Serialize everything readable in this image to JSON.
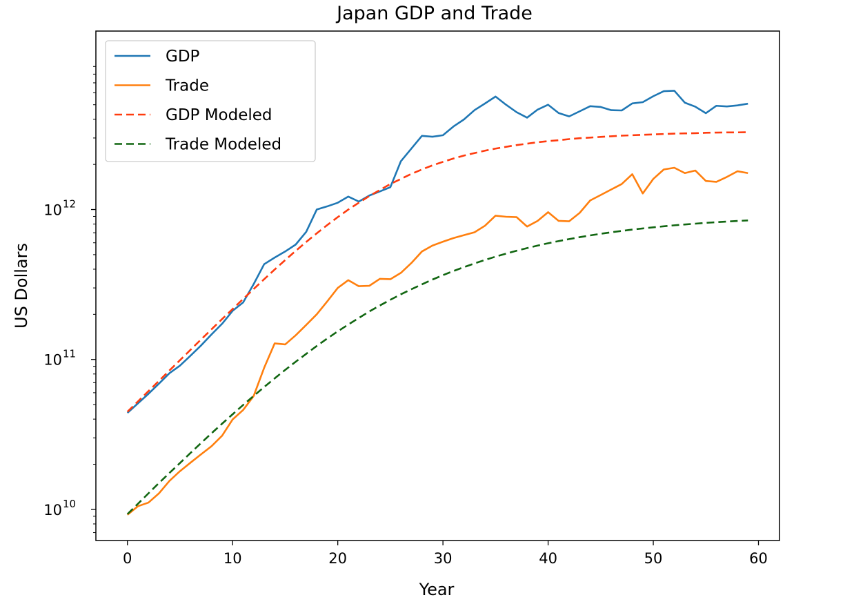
{
  "chart_data": {
    "type": "line",
    "title": "Japan GDP and Trade",
    "xlabel": "Year",
    "ylabel": "US Dollars",
    "yscale": "log",
    "xlim": [
      -3,
      62
    ],
    "ylim": [
      6200000000.0,
      15500000000000.0
    ],
    "xticks": [
      0,
      10,
      20,
      30,
      40,
      50,
      60
    ],
    "yticks": [
      {
        "value": 10000000000.0,
        "base": "10",
        "exp": "10"
      },
      {
        "value": 100000000000.0,
        "base": "10",
        "exp": "11"
      },
      {
        "value": 1000000000000.0,
        "base": "10",
        "exp": "12"
      }
    ],
    "grid": false,
    "legend_position": "upper-left",
    "x": [
      0,
      1,
      2,
      3,
      4,
      5,
      6,
      7,
      8,
      9,
      10,
      11,
      12,
      13,
      14,
      15,
      16,
      17,
      18,
      19,
      20,
      21,
      22,
      23,
      24,
      25,
      26,
      27,
      28,
      29,
      30,
      31,
      32,
      33,
      34,
      35,
      36,
      37,
      38,
      39,
      40,
      41,
      42,
      43,
      44,
      45,
      46,
      47,
      48,
      49,
      50,
      51,
      52,
      53,
      54,
      55,
      56,
      57,
      58,
      59
    ],
    "series": [
      {
        "name": "GDP",
        "color": "#1f77b4",
        "style": "solid",
        "values": [
          44000000000.0,
          51000000000.0,
          59000000000.0,
          69000000000.0,
          81000000000.0,
          91000000000.0,
          106000000000.0,
          124000000000.0,
          147000000000.0,
          173000000000.0,
          211000000000.0,
          240000000000.0,
          318000000000.0,
          432000000000.0,
          478000000000.0,
          525000000000.0,
          584000000000.0,
          710000000000.0,
          1000000000000.0,
          1050000000000.0,
          1110000000000.0,
          1220000000000.0,
          1130000000000.0,
          1240000000000.0,
          1320000000000.0,
          1410000000000.0,
          2100000000000.0,
          2550000000000.0,
          3100000000000.0,
          3060000000000.0,
          3130000000000.0,
          3580000000000.0,
          3990000000000.0,
          4600000000000.0,
          5100000000000.0,
          5670000000000.0,
          5000000000000.0,
          4460000000000.0,
          4100000000000.0,
          4640000000000.0,
          5000000000000.0,
          4400000000000.0,
          4180000000000.0,
          4520000000000.0,
          4890000000000.0,
          4830000000000.0,
          4600000000000.0,
          4580000000000.0,
          5100000000000.0,
          5200000000000.0,
          5700000000000.0,
          6160000000000.0,
          6200000000000.0,
          5160000000000.0,
          4850000000000.0,
          4390000000000.0,
          4920000000000.0,
          4870000000000.0,
          4950000000000.0,
          5080000000000.0
        ]
      },
      {
        "name": "Trade",
        "color": "#ff7f0e",
        "style": "solid",
        "values": [
          9200000000.0,
          10500000000.0,
          11100000000.0,
          12800000000.0,
          15500000000.0,
          18000000000.0,
          20500000000.0,
          23300000000.0,
          26400000000.0,
          31000000000.0,
          39800000000.0,
          46000000000.0,
          57000000000.0,
          88000000000.0,
          128000000000.0,
          126000000000.0,
          145000000000.0,
          170000000000.0,
          200000000000.0,
          244000000000.0,
          300000000000.0,
          338000000000.0,
          308000000000.0,
          310000000000.0,
          345000000000.0,
          343000000000.0,
          378000000000.0,
          440000000000.0,
          525000000000.0,
          575000000000.0,
          610000000000.0,
          645000000000.0,
          675000000000.0,
          705000000000.0,
          780000000000.0,
          910000000000.0,
          895000000000.0,
          890000000000.0,
          770000000000.0,
          840000000000.0,
          960000000000.0,
          840000000000.0,
          835000000000.0,
          950000000000.0,
          1150000000000.0,
          1250000000000.0,
          1360000000000.0,
          1480000000000.0,
          1720000000000.0,
          1280000000000.0,
          1600000000000.0,
          1850000000000.0,
          1900000000000.0,
          1750000000000.0,
          1820000000000.0,
          1550000000000.0,
          1530000000000.0,
          1650000000000.0,
          1800000000000.0,
          1750000000000.0
        ]
      },
      {
        "name": "GDP Modeled",
        "color": "#ff3b0e",
        "style": "dashed",
        "values": [
          44800000000.0,
          52500000000.0,
          61500000000.0,
          72000000000.0,
          84500000000.0,
          99000000000.0,
          116000000000.0,
          136000000000.0,
          159000000000.0,
          186000000000.0,
          217000000000.0,
          253000000000.0,
          295000000000.0,
          343000000000.0,
          398000000000.0,
          460000000000.0,
          530000000000.0,
          608000000000.0,
          694000000000.0,
          788000000000.0,
          890000000000.0,
          1000000000000.0,
          1110000000000.0,
          1230000000000.0,
          1350000000000.0,
          1480000000000.0,
          1600000000000.0,
          1730000000000.0,
          1850000000000.0,
          1970000000000.0,
          2080000000000.0,
          2190000000000.0,
          2290000000000.0,
          2380000000000.0,
          2470000000000.0,
          2550000000000.0,
          2620000000000.0,
          2690000000000.0,
          2750000000000.0,
          2810000000000.0,
          2860000000000.0,
          2900000000000.0,
          2950000000000.0,
          2990000000000.0,
          3020000000000.0,
          3050000000000.0,
          3080000000000.0,
          3110000000000.0,
          3130000000000.0,
          3150000000000.0,
          3170000000000.0,
          3190000000000.0,
          3210000000000.0,
          3220000000000.0,
          3230000000000.0,
          3250000000000.0,
          3260000000000.0,
          3270000000000.0,
          3270000000000.0,
          3280000000000.0
        ]
      },
      {
        "name": "Trade Modeled",
        "color": "#116611",
        "style": "dashed",
        "values": [
          9300000000.0,
          10900000000.0,
          12800000000.0,
          15000000000.0,
          17500000000.0,
          20400000000.0,
          23800000000.0,
          27700000000.0,
          32200000000.0,
          37300000000.0,
          43100000000.0,
          49700000000.0,
          57100000000.0,
          65500000000.0,
          74800000000.0,
          85200000000.0,
          96600000000.0,
          109000000000.0,
          123000000000.0,
          138000000000.0,
          154000000000.0,
          171000000000.0,
          189000000000.0,
          209000000000.0,
          229000000000.0,
          250000000000.0,
          272000000000.0,
          294000000000.0,
          317000000000.0,
          341000000000.0,
          365000000000.0,
          389000000000.0,
          413000000000.0,
          437000000000.0,
          461000000000.0,
          485000000000.0,
          508000000000.0,
          531000000000.0,
          553000000000.0,
          575000000000.0,
          596000000000.0,
          616000000000.0,
          635000000000.0,
          654000000000.0,
          672000000000.0,
          689000000000.0,
          705000000000.0,
          720000000000.0,
          735000000000.0,
          748000000000.0,
          761000000000.0,
          773000000000.0,
          785000000000.0,
          795000000000.0,
          805000000000.0,
          815000000000.0,
          823000000000.0,
          831000000000.0,
          839000000000.0,
          846000000000.0
        ]
      }
    ]
  }
}
